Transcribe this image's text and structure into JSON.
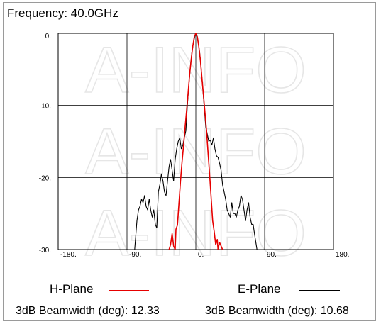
{
  "header": {
    "frequency_label": "Frequency: 40.0GHz"
  },
  "colors": {
    "h_plane": "#e60000",
    "e_plane": "#000000",
    "grid": "#000000",
    "watermark": "#e6e6e6"
  },
  "watermark": "A-INFO",
  "legend": {
    "h_plane_label": "H-Plane",
    "e_plane_label": "E-Plane",
    "h_beamwidth": "3dB Beamwidth (deg): 12.33",
    "e_beamwidth": "3dB Beamwidth (deg): 10.68"
  },
  "chart_data": {
    "type": "line",
    "title": "",
    "xlabel": "",
    "ylabel": "",
    "xlim": [
      -180,
      180
    ],
    "ylim": [
      -30,
      0
    ],
    "grid": true,
    "y_tick_labels": [
      "0.",
      "-10.",
      "-20.",
      "-30."
    ],
    "y_ticks": [
      0,
      -10,
      -20,
      -30
    ],
    "x_tick_labels": [
      "-180.",
      "-90.",
      "0.",
      "90.",
      "180."
    ],
    "x_ticks": [
      -180,
      -90,
      0,
      90,
      180
    ],
    "legend_position": "bottom",
    "series": [
      {
        "name": "H-Plane",
        "color": "#e60000",
        "x": [
          -35,
          -33,
          -31,
          -29,
          -27,
          -26,
          -24,
          -22,
          -20,
          -18,
          -16,
          -14,
          -12,
          -10,
          -8,
          -6,
          -4,
          -2,
          0,
          2,
          4,
          6,
          8,
          10,
          12,
          14,
          16,
          18,
          20,
          22,
          24,
          26,
          28,
          29,
          31,
          33,
          35
        ],
        "y": [
          -30,
          -29.3,
          -27.8,
          -29.5,
          -30,
          -27.2,
          -26.6,
          -23.5,
          -20.5,
          -17.8,
          -15.5,
          -13,
          -10.6,
          -8.2,
          -5.6,
          -3.6,
          -1.8,
          -0.5,
          0,
          -0.5,
          -1.9,
          -3.8,
          -6.2,
          -8.6,
          -11,
          -13.5,
          -16.5,
          -19.5,
          -22.8,
          -26,
          -27.5,
          -29.3,
          -28.6,
          -30,
          -29,
          -29.5,
          -30
        ]
      },
      {
        "name": "E-Plane",
        "color": "#000000",
        "x": [
          -80,
          -77,
          -75,
          -73,
          -71,
          -69,
          -67,
          -65,
          -63,
          -61,
          -59,
          -57,
          -55,
          -53,
          -51,
          -49,
          -47,
          -45,
          -43,
          -41,
          -39,
          -37,
          -35,
          -33,
          -31,
          -29,
          -27,
          -25,
          -23,
          -21,
          -19,
          -17,
          -15,
          -13,
          -11,
          -9,
          -7,
          -5,
          -3,
          -1,
          0,
          1,
          3,
          5,
          7,
          9,
          11,
          13,
          15,
          17,
          19,
          21,
          23,
          25,
          27,
          29,
          31,
          33,
          35,
          37,
          39,
          41,
          43,
          45,
          47,
          49,
          51,
          53,
          55,
          57,
          59,
          61,
          63,
          65,
          67,
          69,
          71,
          73,
          75,
          77,
          80
        ],
        "y": [
          -30,
          -26,
          -24.5,
          -24,
          -23,
          -23.5,
          -22.5,
          -24,
          -24.5,
          -23,
          -24.5,
          -25.5,
          -24.5,
          -26.5,
          -27,
          -22,
          -21,
          -19.5,
          -20.5,
          -22,
          -22.5,
          -20.5,
          -18.5,
          -17.5,
          -19,
          -20.5,
          -17.5,
          -16,
          -15,
          -14.5,
          -16,
          -15.5,
          -14.5,
          -13.5,
          -10,
          -7,
          -4.5,
          -2.5,
          -1.2,
          -0.3,
          0,
          -0.3,
          -1.2,
          -2.6,
          -4.8,
          -7.5,
          -10.3,
          -13,
          -14,
          -15,
          -14.8,
          -15.5,
          -14.5,
          -16,
          -17,
          -17.2,
          -18,
          -19,
          -21,
          -22,
          -23,
          -24.5,
          -25,
          -25.5,
          -23.5,
          -25,
          -25,
          -25.5,
          -24.5,
          -24,
          -22.5,
          -23,
          -24.5,
          -26,
          -24.5,
          -23.5,
          -25.5,
          -26.5,
          -26.5,
          -28,
          -30
        ]
      }
    ]
  }
}
